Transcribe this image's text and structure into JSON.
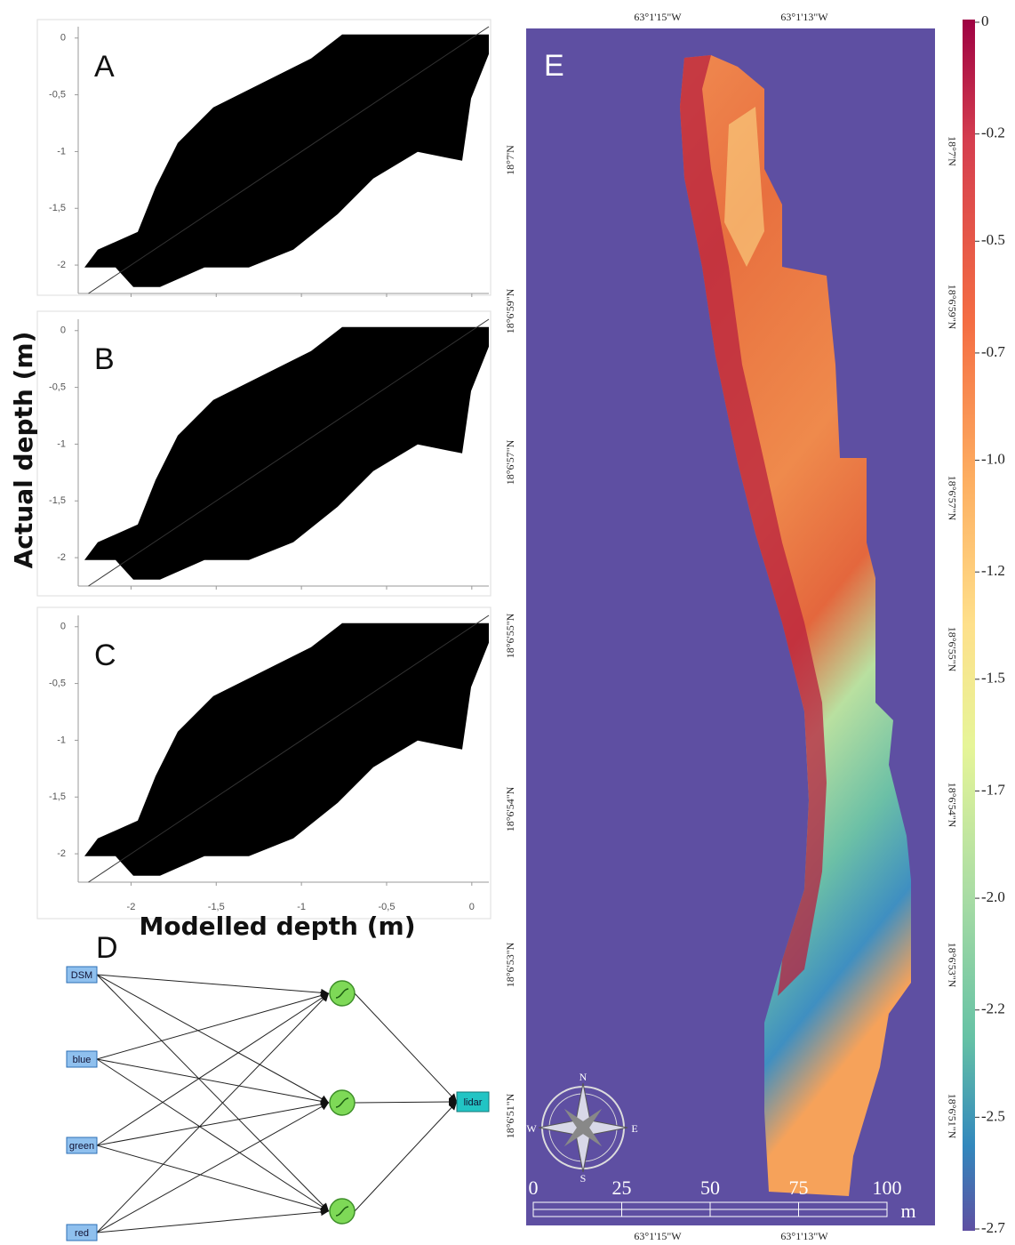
{
  "scatter_panels": {
    "ylabel": "Actual depth (m)",
    "xlabel": "Modelled depth (m)",
    "panel_labels": [
      "A",
      "B",
      "C"
    ],
    "xlim": [
      -2.31,
      0.1
    ],
    "ylim": [
      -2.25,
      0.1
    ],
    "yticks": [
      0,
      {
        "value": -0.5,
        "label": "-0,5"
      },
      -1,
      {
        "value": -1.5,
        "label": "-1,5"
      },
      -2
    ],
    "xticks": [
      -2,
      {
        "value": -1.5,
        "label": "-1,5"
      },
      -1,
      {
        "value": -0.5,
        "label": "-0,5"
      },
      0
    ]
  },
  "network": {
    "label": "D",
    "inputs": [
      "DSM",
      "blue",
      "green",
      "red"
    ],
    "output": "lidar"
  },
  "map": {
    "label": "E",
    "top_lon": [
      "63°1'15\"W",
      "63°1'13\"W"
    ],
    "bottom_lon": [
      "63°1'15\"W",
      "63°1'13\"W"
    ],
    "left_lat": [
      "18°7'N",
      "18°6'59\"N",
      "18°6'57\"N",
      "18°6'55\"N",
      "18°6'54\"N",
      "18°6'53\"N",
      "18°6'51\"N"
    ],
    "right_lat": [
      "18°7'N",
      "18°6'59\"N",
      "18°6'57\"N",
      "18°6'55\"N",
      "18°6'54\"N",
      "18°6'53\"N",
      "18°6'51\"N"
    ],
    "compass": [
      "N",
      "S",
      "E",
      "W"
    ],
    "scale": {
      "ticks": [
        0,
        25,
        50,
        75,
        100
      ],
      "unit": "m"
    },
    "colorbar": {
      "lim": [
        -2.7,
        0
      ],
      "ticks": [
        0,
        {
          "value": -0.25,
          "label": "-0.2"
        },
        {
          "value": -0.49,
          "label": "-0.5"
        },
        {
          "value": -0.74,
          "label": "-0.7"
        },
        {
          "value": -0.98,
          "label": "-1.0"
        },
        {
          "value": -1.23,
          "label": "-1.2"
        },
        {
          "value": -1.47,
          "label": "-1.5"
        },
        {
          "value": -1.72,
          "label": "-1.7"
        },
        {
          "value": -1.96,
          "label": "-2.0"
        },
        {
          "value": -2.21,
          "label": "-2.2"
        },
        {
          "value": -2.45,
          "label": "-2.5"
        },
        -2.7
      ]
    }
  }
}
